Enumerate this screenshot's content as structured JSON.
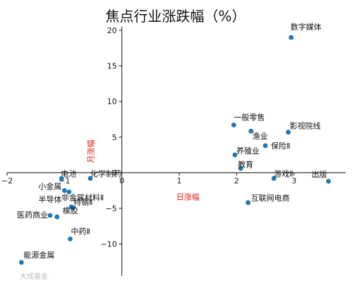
{
  "chart_data": {
    "type": "scatter",
    "title": "焦点行业涨跌幅（%）",
    "xlabel": "日涨幅",
    "ylabel": "月涨幅",
    "xlim": [
      -2.0,
      3.9
    ],
    "ylim": [
      -14.5,
      20.5
    ],
    "xticks": [
      -2,
      -1,
      0,
      1,
      2,
      3
    ],
    "yticks": [
      -10,
      -5,
      0,
      5,
      10,
      15,
      20
    ],
    "grid": false,
    "point_color": "#1f77b4",
    "axis_label_color": "#e0201b",
    "points": [
      {
        "name": "数字媒体",
        "x": 2.95,
        "y": 19.0
      },
      {
        "name": "一般零售",
        "x": 1.95,
        "y": 6.7
      },
      {
        "name": "影视院线",
        "x": 2.9,
        "y": 5.7
      },
      {
        "name": "渔业",
        "x": 2.25,
        "y": 5.85
      },
      {
        "name": "保险Ⅱ",
        "x": 2.5,
        "y": 3.8
      },
      {
        "name": "养殖业",
        "x": 1.97,
        "y": 2.5
      },
      {
        "name": "教育",
        "x": 2.07,
        "y": 0.6
      },
      {
        "name": "游戏Ⅱ",
        "x": 2.65,
        "y": -0.8
      },
      {
        "name": "出版",
        "x": 3.6,
        "y": -1.2
      },
      {
        "name": "互联网电商",
        "x": 2.2,
        "y": -4.2
      },
      {
        "name": "电池",
        "x": -1.05,
        "y": -0.8
      },
      {
        "name": "化学制药",
        "x": -0.55,
        "y": -0.8
      },
      {
        "name": "小金属",
        "x": -1.0,
        "y": -2.5
      },
      {
        "name": "非金属材料Ⅱ",
        "x": -0.92,
        "y": -2.7
      },
      {
        "name": "特钢Ⅱ",
        "x": -0.88,
        "y": -4.8
      },
      {
        "name": "半导体",
        "x": -0.85,
        "y": -4.9
      },
      {
        "name": "医药商业",
        "x": -1.25,
        "y": -6.0
      },
      {
        "name": "橡胶",
        "x": -1.13,
        "y": -6.2
      },
      {
        "name": "中药Ⅱ",
        "x": -0.9,
        "y": -9.3
      },
      {
        "name": "能源金属",
        "x": -1.75,
        "y": -12.6
      }
    ]
  },
  "watermark": "大成基金"
}
